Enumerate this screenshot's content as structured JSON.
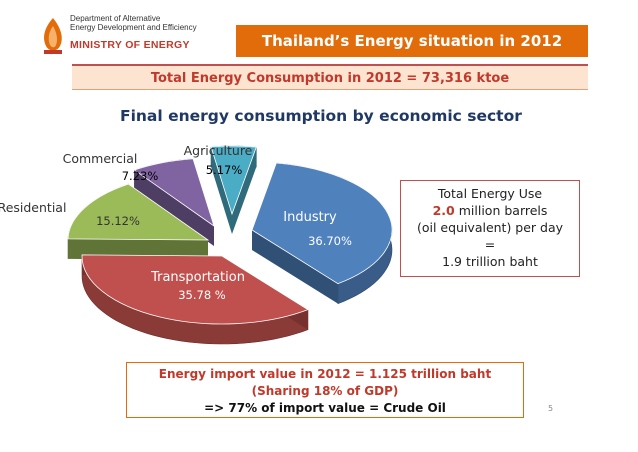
{
  "header": {
    "logo_line1": "Department of Alternative",
    "logo_line2": "Energy Development and Efficiency",
    "logo_line3": "MINISTRY OF ENERGY",
    "title": "Thailand’s Energy situation in 2012",
    "consumption": "Total Energy Consumption in 2012 = 73,316 ktoe"
  },
  "colors": {
    "title_bg": "#e36c0a",
    "industry": "#4f81bd",
    "transportation": "#c0504d",
    "residential": "#9bbb59",
    "commercial": "#8064a2",
    "agriculture": "#4bacc6"
  },
  "chart_data": {
    "type": "pie",
    "title": "Final energy consumption by economic sector",
    "slices": [
      {
        "name": "Industry",
        "value": 36.7,
        "label": "36.70%",
        "color": "#4f81bd"
      },
      {
        "name": "Transportation",
        "value": 35.78,
        "label": "35.78 %",
        "color": "#c0504d"
      },
      {
        "name": "Residential",
        "value": 15.12,
        "label": "15.12%",
        "color": "#9bbb59"
      },
      {
        "name": "Commercial",
        "value": 7.23,
        "label": "7.23%",
        "color": "#8064a2"
      },
      {
        "name": "Agriculture",
        "value": 5.17,
        "label": "5.17%",
        "color": "#4bacc6"
      }
    ]
  },
  "energy_use": {
    "line1": "Total Energy Use",
    "value": "2.0",
    "line2_rest": "million barrels",
    "line3": "(oil equivalent) per day",
    "line4": "=",
    "line5": "1.9 trillion baht"
  },
  "import": {
    "line1": "Energy import value in 2012  = 1.125 trillion baht",
    "line2": "(Sharing  18%  of  GDP)",
    "line3": "=>  77% of import value = Crude Oil"
  },
  "page_number": "5"
}
